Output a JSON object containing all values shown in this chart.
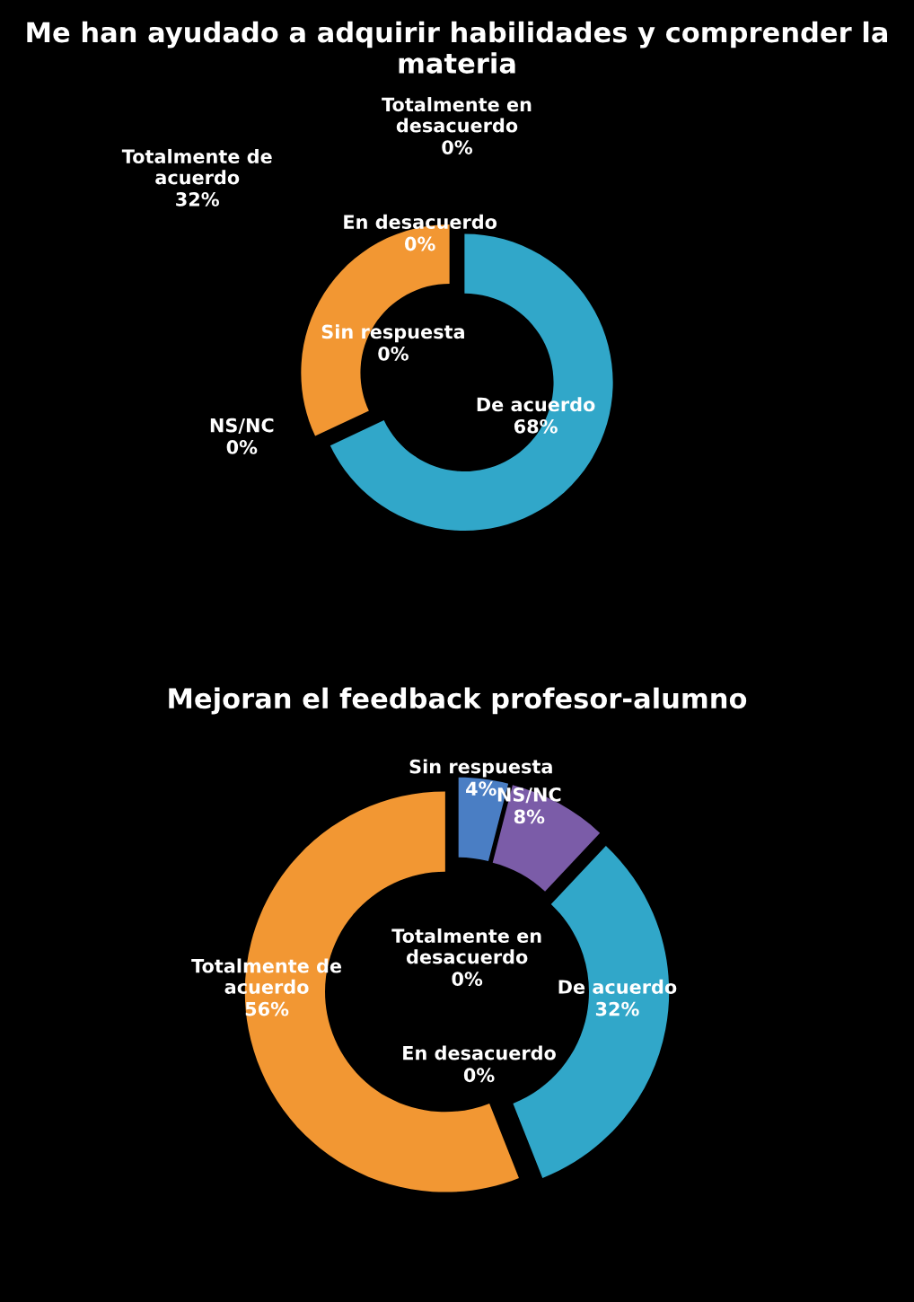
{
  "chart_data": [
    {
      "type": "donut",
      "title": "Me han ayudado a adquirir habilidades y comprender la materia",
      "categories": [
        "De acuerdo",
        "Totalmente de acuerdo",
        "NS/NC",
        "Sin respuesta",
        "En desacuerdo",
        "Totalmente en desacuerdo"
      ],
      "values": [
        68,
        32,
        0,
        0,
        0,
        0
      ],
      "value_labels": [
        "68%",
        "32%",
        "0%",
        "0%",
        "0%",
        "0%"
      ],
      "colors": [
        "#31a7c9",
        "#f29733",
        "#7b5ca8",
        "#4a7ec4",
        "#c0504d",
        "#9bbb59"
      ]
    },
    {
      "type": "donut",
      "title": "Mejoran el feedback profesor-alumno",
      "categories": [
        "Sin respuesta",
        "NS/NC",
        "De acuerdo",
        "En desacuerdo",
        "Totalmente en desacuerdo",
        "Totalmente de acuerdo"
      ],
      "values": [
        4,
        8,
        32,
        0,
        0,
        56
      ],
      "value_labels": [
        "4%",
        "8%",
        "32%",
        "0%",
        "0%",
        "56%"
      ],
      "colors": [
        "#4a7ec4",
        "#7b5ca8",
        "#31a7c9",
        "#c0504d",
        "#9bbb59",
        "#f29733"
      ]
    }
  ]
}
